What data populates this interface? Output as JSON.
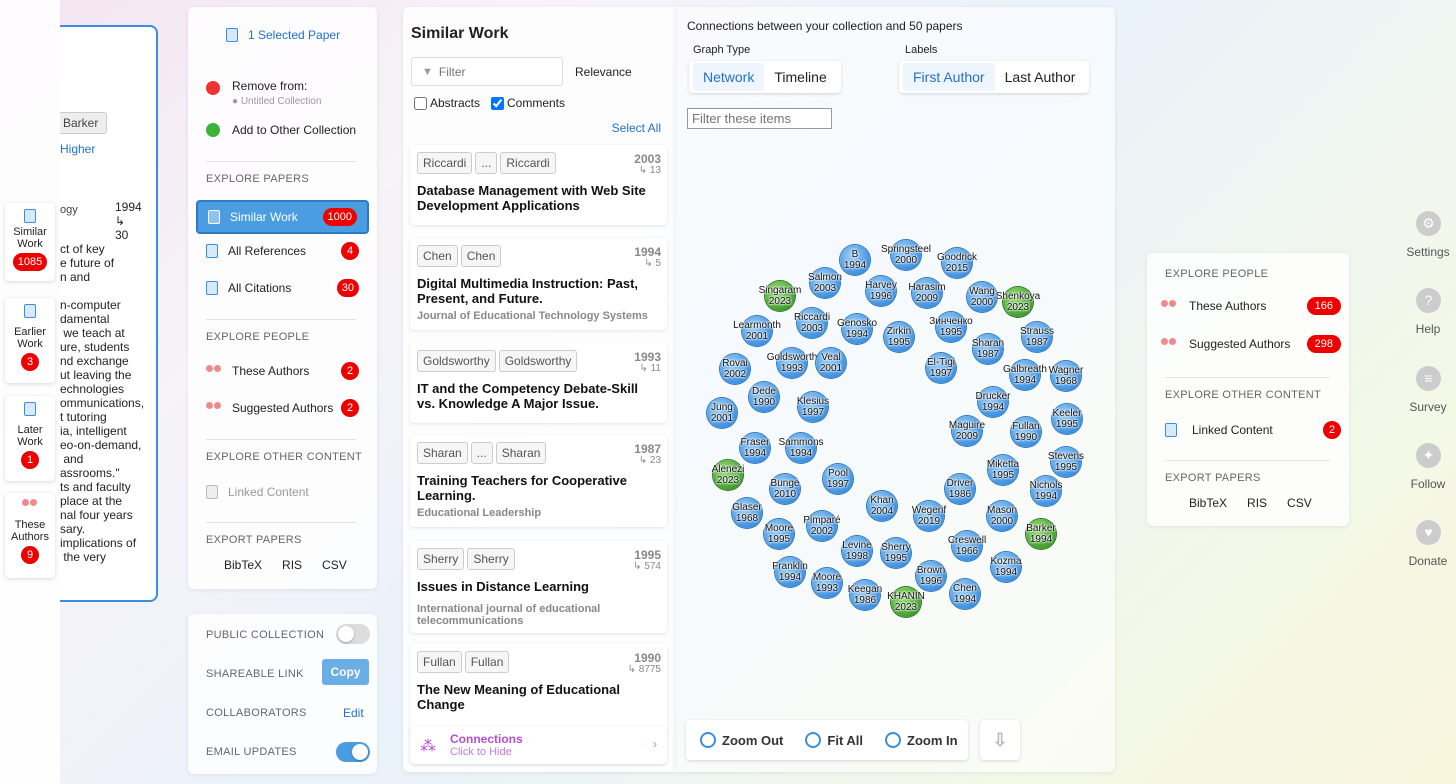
{
  "strip": [
    {
      "label1": "Similar",
      "label2": "Work",
      "count": "1085"
    },
    {
      "label1": "Earlier",
      "label2": "Work",
      "count": "3"
    },
    {
      "label1": "Later",
      "label2": "Work",
      "count": "1"
    },
    {
      "label1": "These",
      "label2": "Authors",
      "count": "9"
    }
  ],
  "preview": {
    "tag": "Barker",
    "link": "Higher",
    "field": "ogy",
    "year": "1994",
    "cite_arrow": "↳",
    "cites": "30",
    "abstract": "ct of key\ne future of\nn and\n\nn-computer\ndamental\n we teach at\nure, students\nnd exchange\nut leaving the\nechnologies\nommunications,\nt tutoring\nia, intelligent\neo-on-demand,\n and\nassrooms.\"\nts and faculty\nplace at the\nnal four years\nsary.\nimplications of\n the very"
  },
  "menu": {
    "selected": "1 Selected Paper",
    "remove_label": "Remove from:",
    "remove_collection": "Untitled Collection",
    "add_label": "Add to Other Collection",
    "explore_papers": "EXPLORE PAPERS",
    "similar": {
      "label": "Similar Work",
      "count": "1000"
    },
    "refs": {
      "label": "All References",
      "count": "4"
    },
    "cites": {
      "label": "All Citations",
      "count": "30"
    },
    "explore_people": "EXPLORE PEOPLE",
    "these_authors": {
      "label": "These Authors",
      "count": "2"
    },
    "suggested_authors": {
      "label": "Suggested Authors",
      "count": "2"
    },
    "explore_other": "EXPLORE OTHER CONTENT",
    "linked": "Linked Content",
    "export": "EXPORT PAPERS",
    "bibtex": "BibTeX",
    "ris": "RIS",
    "csv": "CSV"
  },
  "collection": {
    "public": "PUBLIC COLLECTION",
    "link": "SHAREABLE LINK",
    "copy": "Copy",
    "collaborators": "COLLABORATORS",
    "edit": "Edit",
    "email": "EMAIL UPDATES"
  },
  "similar": {
    "title": "Similar Work",
    "filter_placeholder": "Filter",
    "sort": "Relevance",
    "abstracts": "Abstracts",
    "comments": "Comments",
    "select_all": "Select All",
    "connections": "Connections",
    "click_hide": "Click to Hide",
    "cards": [
      {
        "a1": "Riccardi",
        "dots": "...",
        "a2": "Riccardi",
        "year": "2003",
        "cites": "↳ 13",
        "title": "Database Management with Web Site Development Applications",
        "journal": ""
      },
      {
        "a1": "Chen",
        "dots": "",
        "a2": "Chen",
        "year": "1994",
        "cites": "↳ 5",
        "title": "Digital Multimedia Instruction: Past, Present, and Future.",
        "journal": "Journal of Educational Technology Systems"
      },
      {
        "a1": "Goldsworthy",
        "dots": "",
        "a2": "Goldsworthy",
        "year": "1993",
        "cites": "↳ 11",
        "title": "IT and the Competency Debate-Skill vs. Knowledge A Major Issue.",
        "journal": ""
      },
      {
        "a1": "Sharan",
        "dots": "...",
        "a2": "Sharan",
        "year": "1987",
        "cites": "↳ 23",
        "title": "Training Teachers for Cooperative Learning.",
        "journal": "Educational Leadership"
      },
      {
        "a1": "Sherry",
        "dots": "",
        "a2": "Sherry",
        "year": "1995",
        "cites": "↳ 574",
        "title": "Issues in Distance Learning",
        "journal": "International journal of educational telecommunications"
      },
      {
        "a1": "Fullan",
        "dots": "",
        "a2": "Fullan",
        "year": "1990",
        "cites": "↳ 8775",
        "title": "The New Meaning of Educational Change",
        "journal": ""
      }
    ]
  },
  "graph": {
    "header": "Connections between your collection and 50 papers",
    "graph_type": "Graph Type",
    "network": "Network",
    "timeline": "Timeline",
    "labels": "Labels",
    "first_author": "First Author",
    "last_author": "Last Author",
    "filter_placeholder": "Filter these items",
    "zoom_out": "Zoom Out",
    "fit_all": "Fit All",
    "zoom_in": "Zoom In",
    "nodes": [
      {
        "n": "B",
        "y": "1994",
        "c": "blue"
      },
      {
        "n": "Springsteel",
        "y": "2000",
        "c": "blue"
      },
      {
        "n": "Goodrick",
        "y": "2015",
        "c": "blue"
      },
      {
        "n": "Singaram",
        "y": "2023",
        "c": "green"
      },
      {
        "n": "Salmon",
        "y": "2003",
        "c": "blue"
      },
      {
        "n": "Harvey",
        "y": "1996",
        "c": "blue"
      },
      {
        "n": "Harasim",
        "y": "2009",
        "c": "blue"
      },
      {
        "n": "Wang",
        "y": "2000",
        "c": "blue"
      },
      {
        "n": "Shenkoya",
        "y": "2023",
        "c": "green"
      },
      {
        "n": "Learmonth",
        "y": "2001",
        "c": "blue"
      },
      {
        "n": "Riccardi",
        "y": "2003",
        "c": "blue"
      },
      {
        "n": "Genosko",
        "y": "1994",
        "c": "blue"
      },
      {
        "n": "Зинченко",
        "y": "1995",
        "c": "blue"
      },
      {
        "n": "Zirkin",
        "y": "1995",
        "c": "blue"
      },
      {
        "n": "Strauss",
        "y": "1987",
        "c": "blue"
      },
      {
        "n": "Sharan",
        "y": "1987",
        "c": "blue"
      },
      {
        "n": "Goldsworth",
        "y": "1993",
        "c": "blue"
      },
      {
        "n": "Veal",
        "y": "2001",
        "c": "blue"
      },
      {
        "n": "Rovai",
        "y": "2002",
        "c": "blue"
      },
      {
        "n": "El-Tigi",
        "y": "1997",
        "c": "blue"
      },
      {
        "n": "Galbreath",
        "y": "1994",
        "c": "blue"
      },
      {
        "n": "Wagner",
        "y": "1968",
        "c": "blue"
      },
      {
        "n": "Dede",
        "y": "1990",
        "c": "blue"
      },
      {
        "n": "Klesius",
        "y": "1997",
        "c": "blue"
      },
      {
        "n": "Drucker",
        "y": "1994",
        "c": "blue"
      },
      {
        "n": "Jung",
        "y": "2001",
        "c": "blue"
      },
      {
        "n": "Keeler",
        "y": "1995",
        "c": "blue"
      },
      {
        "n": "Maguire",
        "y": "2009",
        "c": "blue"
      },
      {
        "n": "Fullan",
        "y": "1990",
        "c": "blue"
      },
      {
        "n": "Fraser",
        "y": "1994",
        "c": "blue"
      },
      {
        "n": "Sammons",
        "y": "1994",
        "c": "blue"
      },
      {
        "n": "Stevens",
        "y": "1995",
        "c": "blue"
      },
      {
        "n": "Alenezi",
        "y": "2023",
        "c": "green"
      },
      {
        "n": "Miketta",
        "y": "1995",
        "c": "blue"
      },
      {
        "n": "Pool",
        "y": "1997",
        "c": "blue"
      },
      {
        "n": "Bunge",
        "y": "2010",
        "c": "blue"
      },
      {
        "n": "Driver",
        "y": "1986",
        "c": "blue"
      },
      {
        "n": "Nichols",
        "y": "1994",
        "c": "blue"
      },
      {
        "n": "Glaser",
        "y": "1968",
        "c": "blue"
      },
      {
        "n": "Khan",
        "y": "2004",
        "c": "blue"
      },
      {
        "n": "Mason",
        "y": "2000",
        "c": "blue"
      },
      {
        "n": "Wegerif",
        "y": "2019",
        "c": "blue"
      },
      {
        "n": "Pimparé",
        "y": "2002",
        "c": "blue"
      },
      {
        "n": "Moore",
        "y": "1995",
        "c": "blue"
      },
      {
        "n": "Barker",
        "y": "1994",
        "c": "green"
      },
      {
        "n": "Creswell",
        "y": "1966",
        "c": "blue"
      },
      {
        "n": "Levine",
        "y": "1998",
        "c": "blue"
      },
      {
        "n": "Sherry",
        "y": "1995",
        "c": "blue"
      },
      {
        "n": "Kozma",
        "y": "1994",
        "c": "blue"
      },
      {
        "n": "Franklin",
        "y": "1994",
        "c": "blue"
      },
      {
        "n": "Brown",
        "y": "1996",
        "c": "blue"
      },
      {
        "n": "Moore",
        "y": "1993",
        "c": "blue"
      },
      {
        "n": "Keegan",
        "y": "1986",
        "c": "blue"
      },
      {
        "n": "KHANIN",
        "y": "2023",
        "c": "green"
      },
      {
        "n": "Chen",
        "y": "1994",
        "c": "blue"
      }
    ]
  },
  "right": {
    "explore_people": "EXPLORE PEOPLE",
    "these_authors": {
      "label": "These Authors",
      "count": "166"
    },
    "suggested_authors": {
      "label": "Suggested Authors",
      "count": "298"
    },
    "explore_other": "EXPLORE OTHER CONTENT",
    "linked": {
      "label": "Linked Content",
      "count": "2"
    },
    "export": "EXPORT PAPERS",
    "bibtex": "BibTeX",
    "ris": "RIS",
    "csv": "CSV"
  },
  "side": [
    {
      "label": "Settings",
      "icon": "gear-icon"
    },
    {
      "label": "Help",
      "icon": "question-icon"
    },
    {
      "label": "Survey",
      "icon": "survey-icon"
    },
    {
      "label": "Follow",
      "icon": "twitter-icon"
    },
    {
      "label": "Donate",
      "icon": "heart-icon"
    }
  ]
}
